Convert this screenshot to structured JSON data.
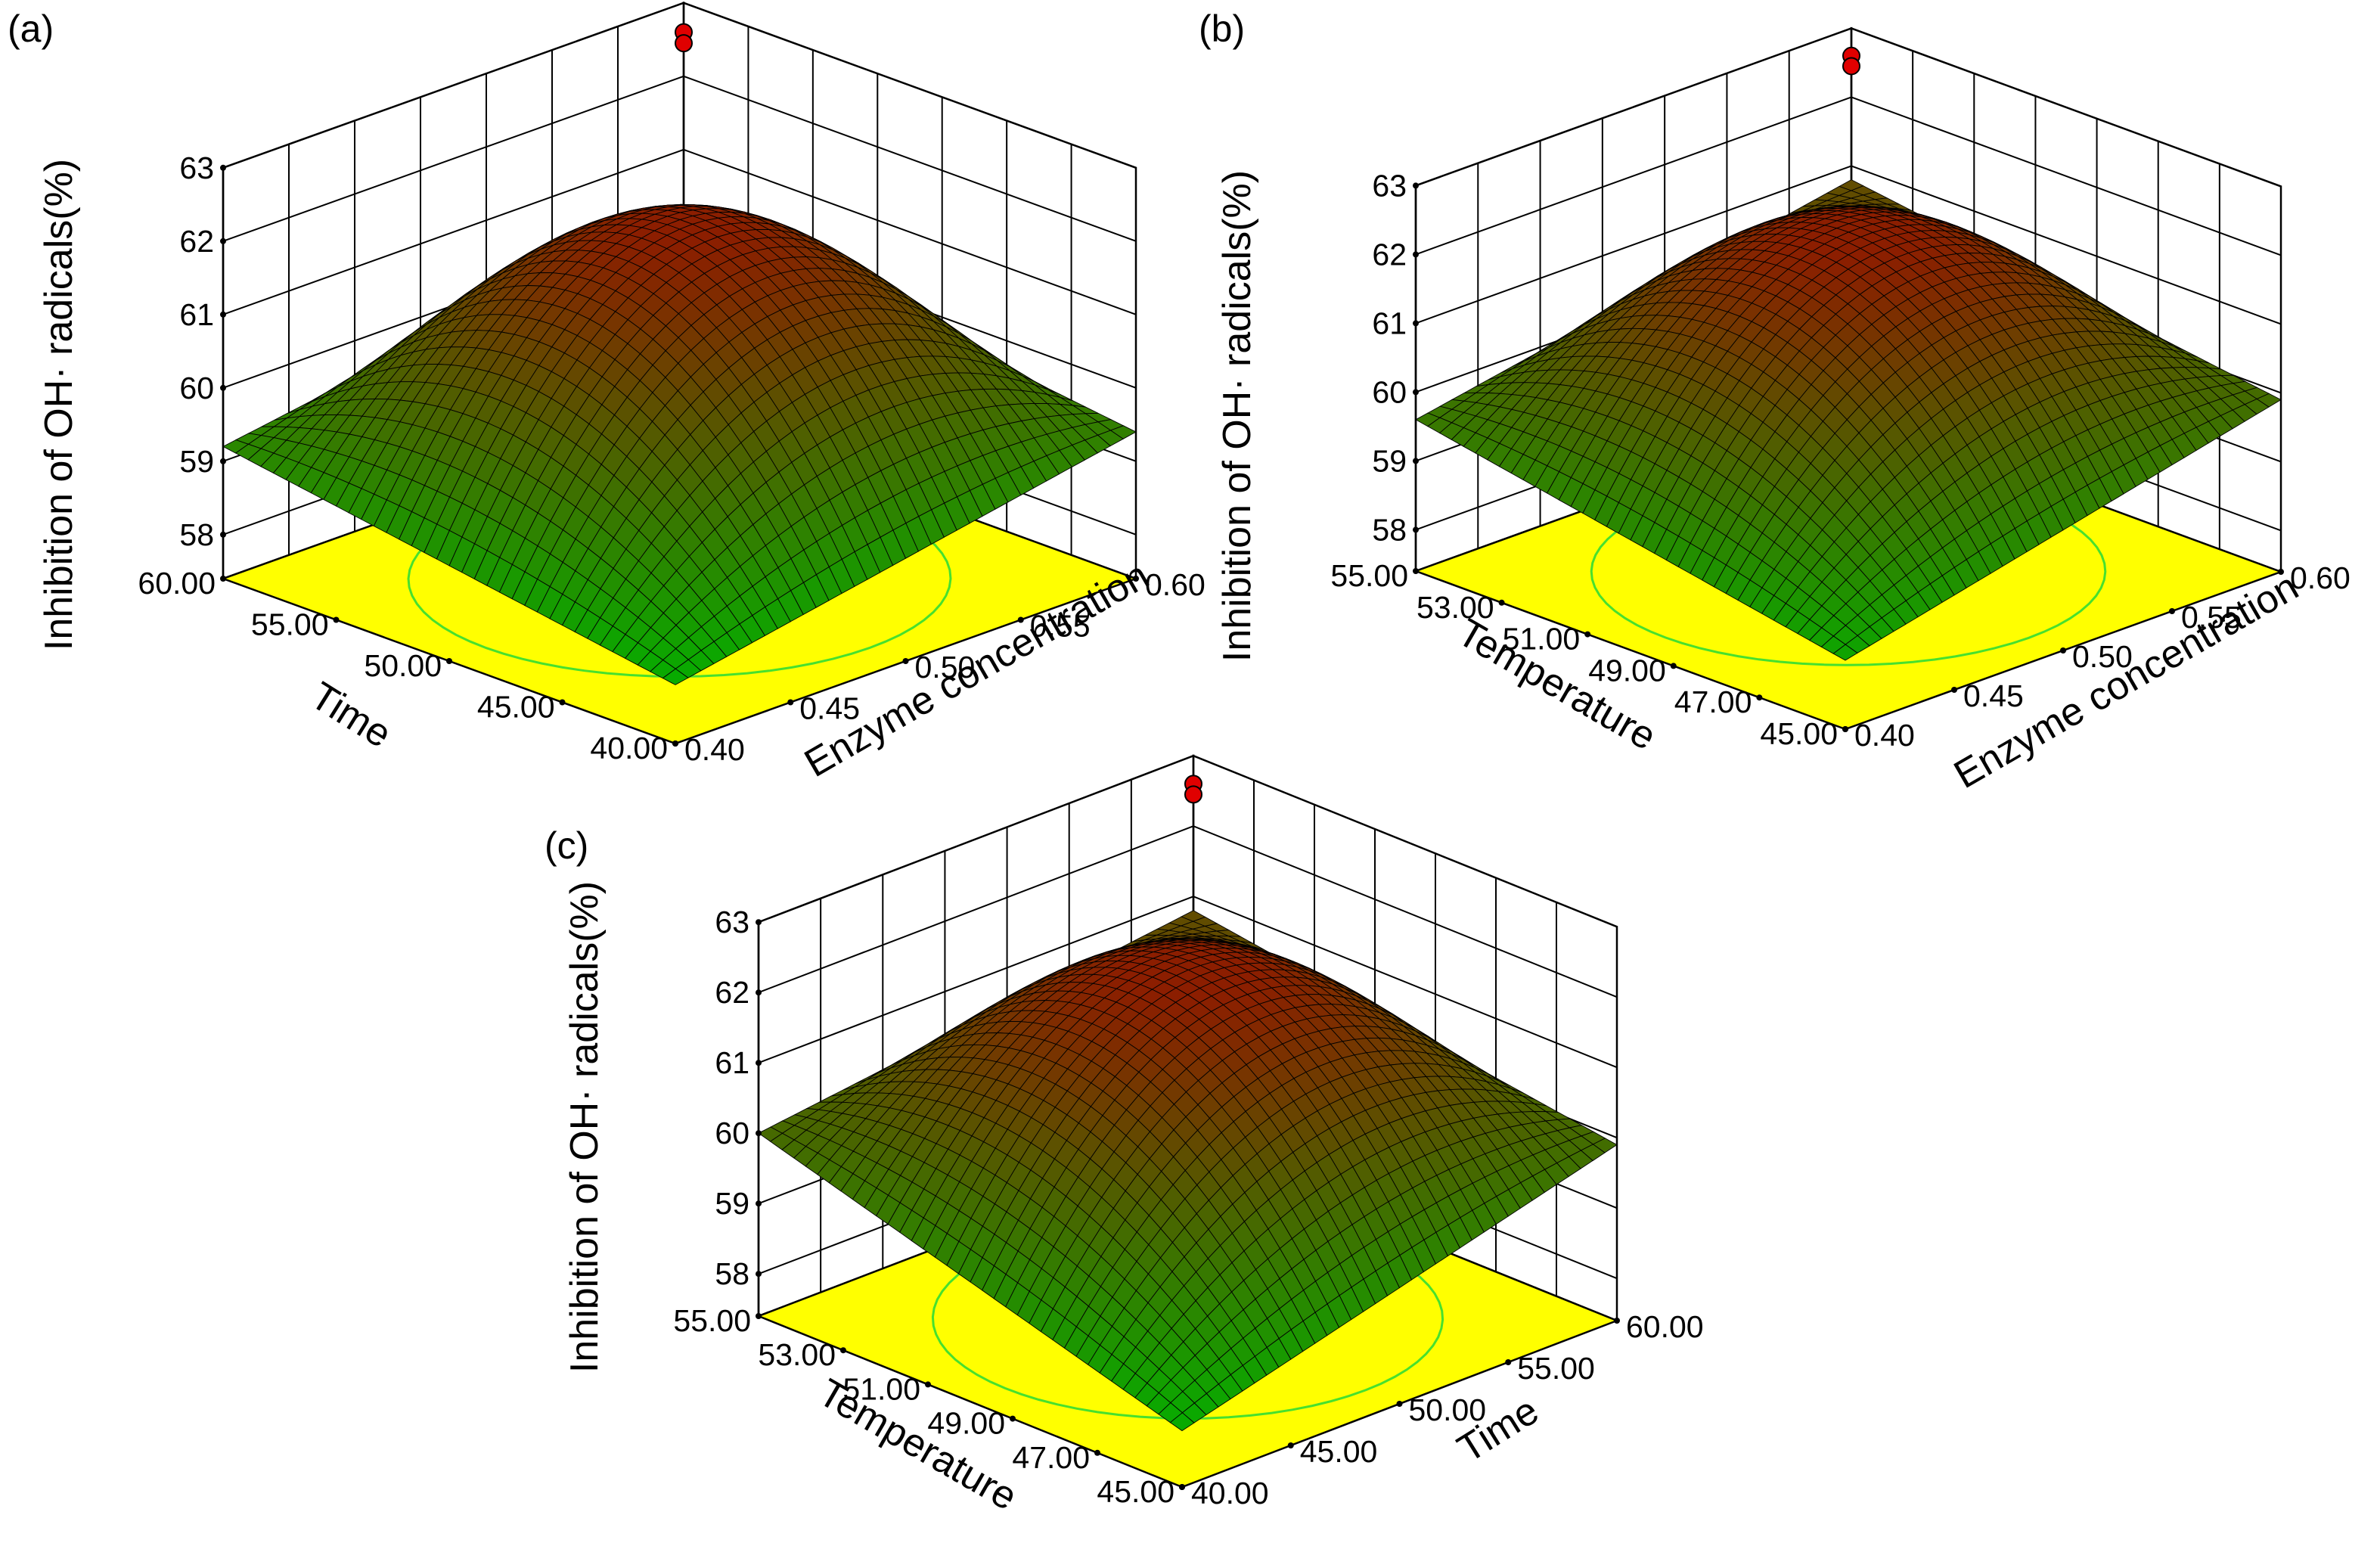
{
  "figure": {
    "panels": [
      {
        "label": "(a)"
      },
      {
        "label": "(b)"
      },
      {
        "label": "(c)"
      }
    ]
  },
  "colors": {
    "floor": "#ffff00",
    "surface_low": "#00b400",
    "surface_high": "#8c1e00",
    "mesh": "#000000",
    "optimum_point": "#e00000",
    "contour_inner": "#ff3300",
    "contour_outer": "#33dd33"
  },
  "chart_data": [
    {
      "type": "surface",
      "panel": "(a)",
      "zlabel": "Inhibition of OH· radicals(%)",
      "zlim": [
        58,
        63
      ],
      "zticks": [
        "58",
        "59",
        "60",
        "61",
        "62",
        "63"
      ],
      "left_axis": {
        "label": "Time",
        "range": [
          40,
          60
        ],
        "ticks": [
          "40.00",
          "45.00",
          "50.00",
          "55.00",
          "60.00"
        ]
      },
      "right_axis": {
        "label": "Enzyme concentration",
        "range": [
          0.4,
          0.6
        ],
        "ticks": [
          "0.40",
          "0.45",
          "0.50",
          "0.55",
          "0.60"
        ]
      },
      "surface": {
        "peak_z": 62.0,
        "corner_z": {
          "front": 58.2,
          "left": 59.2,
          "right": 59.4,
          "back": 60.2
        }
      },
      "optimum_points_z": [
        62.6,
        62.45
      ]
    },
    {
      "type": "surface",
      "panel": "(b)",
      "zlabel": "Inhibition of OH· radicals(%)",
      "zlim": [
        58,
        63
      ],
      "zticks": [
        "58",
        "59",
        "60",
        "61",
        "62",
        "63"
      ],
      "left_axis": {
        "label": "Temperature",
        "range": [
          45,
          55
        ],
        "ticks": [
          "45.00",
          "47.00",
          "49.00",
          "51.00",
          "53.00",
          "55.00"
        ]
      },
      "right_axis": {
        "label": "Enzyme concentration",
        "range": [
          0.4,
          0.6
        ],
        "ticks": [
          "0.40",
          "0.45",
          "0.50",
          "0.55",
          "0.60"
        ]
      },
      "surface": {
        "peak_z": 62.0,
        "corner_z": {
          "front": 58.4,
          "left": 59.6,
          "right": 59.9,
          "back": 60.8
        }
      },
      "optimum_points_z": [
        62.6,
        62.45
      ]
    },
    {
      "type": "surface",
      "panel": "(c)",
      "zlabel": "Inhibition of OH· radicals(%)",
      "zlim": [
        58,
        63
      ],
      "zticks": [
        "58",
        "59",
        "60",
        "61",
        "62",
        "63"
      ],
      "left_axis": {
        "label": "Temperature",
        "range": [
          45,
          55
        ],
        "ticks": [
          "45.00",
          "47.00",
          "49.00",
          "51.00",
          "53.00",
          "55.00"
        ]
      },
      "right_axis": {
        "label": "Time",
        "range": [
          40,
          60
        ],
        "ticks": [
          "40.00",
          "45.00",
          "50.00",
          "55.00",
          "60.00"
        ]
      },
      "surface": {
        "peak_z": 62.0,
        "corner_z": {
          "front": 58.2,
          "left": 60.0,
          "right": 59.9,
          "back": 60.8
        }
      },
      "optimum_points_z": [
        62.6,
        62.45
      ]
    }
  ]
}
